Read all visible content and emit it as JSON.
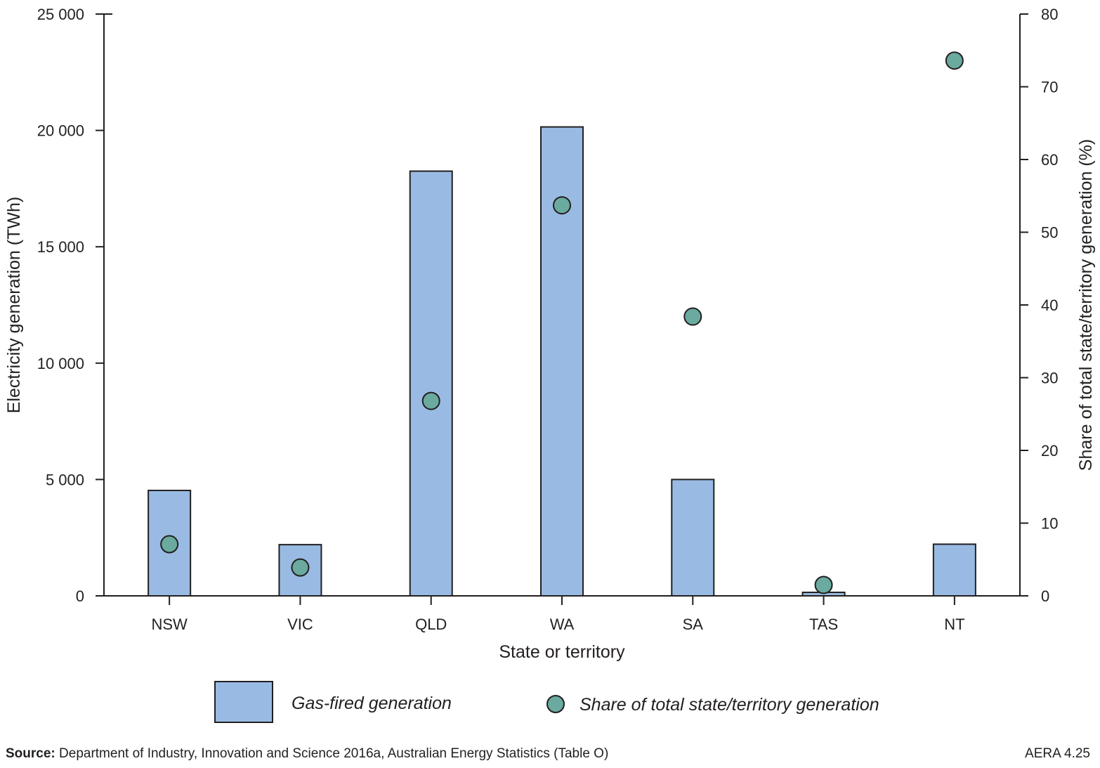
{
  "chart_data": {
    "type": "bar",
    "categories": [
      "NSW",
      "VIC",
      "QLD",
      "WA",
      "SA",
      "TAS",
      "NT"
    ],
    "xlabel": "State or territory",
    "ylabel": "Electricity generation (TWh)",
    "y2label": "Share of total state/territory generation (%)",
    "ylim": [
      0,
      25000
    ],
    "y2lim": [
      0,
      80
    ],
    "yticks": [
      "0",
      "5 000",
      "10 000",
      "15 000",
      "20 000",
      "25 000"
    ],
    "yticks_values": [
      0,
      5000,
      10000,
      15000,
      20000,
      25000
    ],
    "y2ticks": [
      "0",
      "10",
      "20",
      "30",
      "40",
      "50",
      "60",
      "70",
      "80"
    ],
    "y2ticks_values": [
      0,
      10,
      20,
      30,
      40,
      50,
      60,
      70,
      80
    ],
    "grid": false,
    "legend_position": "bottom",
    "series": [
      {
        "name": "Gas-fired generation",
        "type": "bar",
        "axis": "left",
        "color": "#99bbe3",
        "values": [
          4530,
          2200,
          18250,
          20150,
          5000,
          150,
          2220
        ]
      },
      {
        "name": "Share of total state/territory generation",
        "type": "scatter",
        "axis": "right",
        "color": "#6aaa9f",
        "values": [
          7.1,
          3.9,
          26.8,
          53.7,
          38.4,
          1.5,
          73.6
        ]
      }
    ]
  },
  "source": {
    "label": "Source:",
    "text": " Department of Industry, Innovation and Science 2016a, Australian Energy Statistics (Table O)"
  },
  "figure_id": "AERA 4.25"
}
